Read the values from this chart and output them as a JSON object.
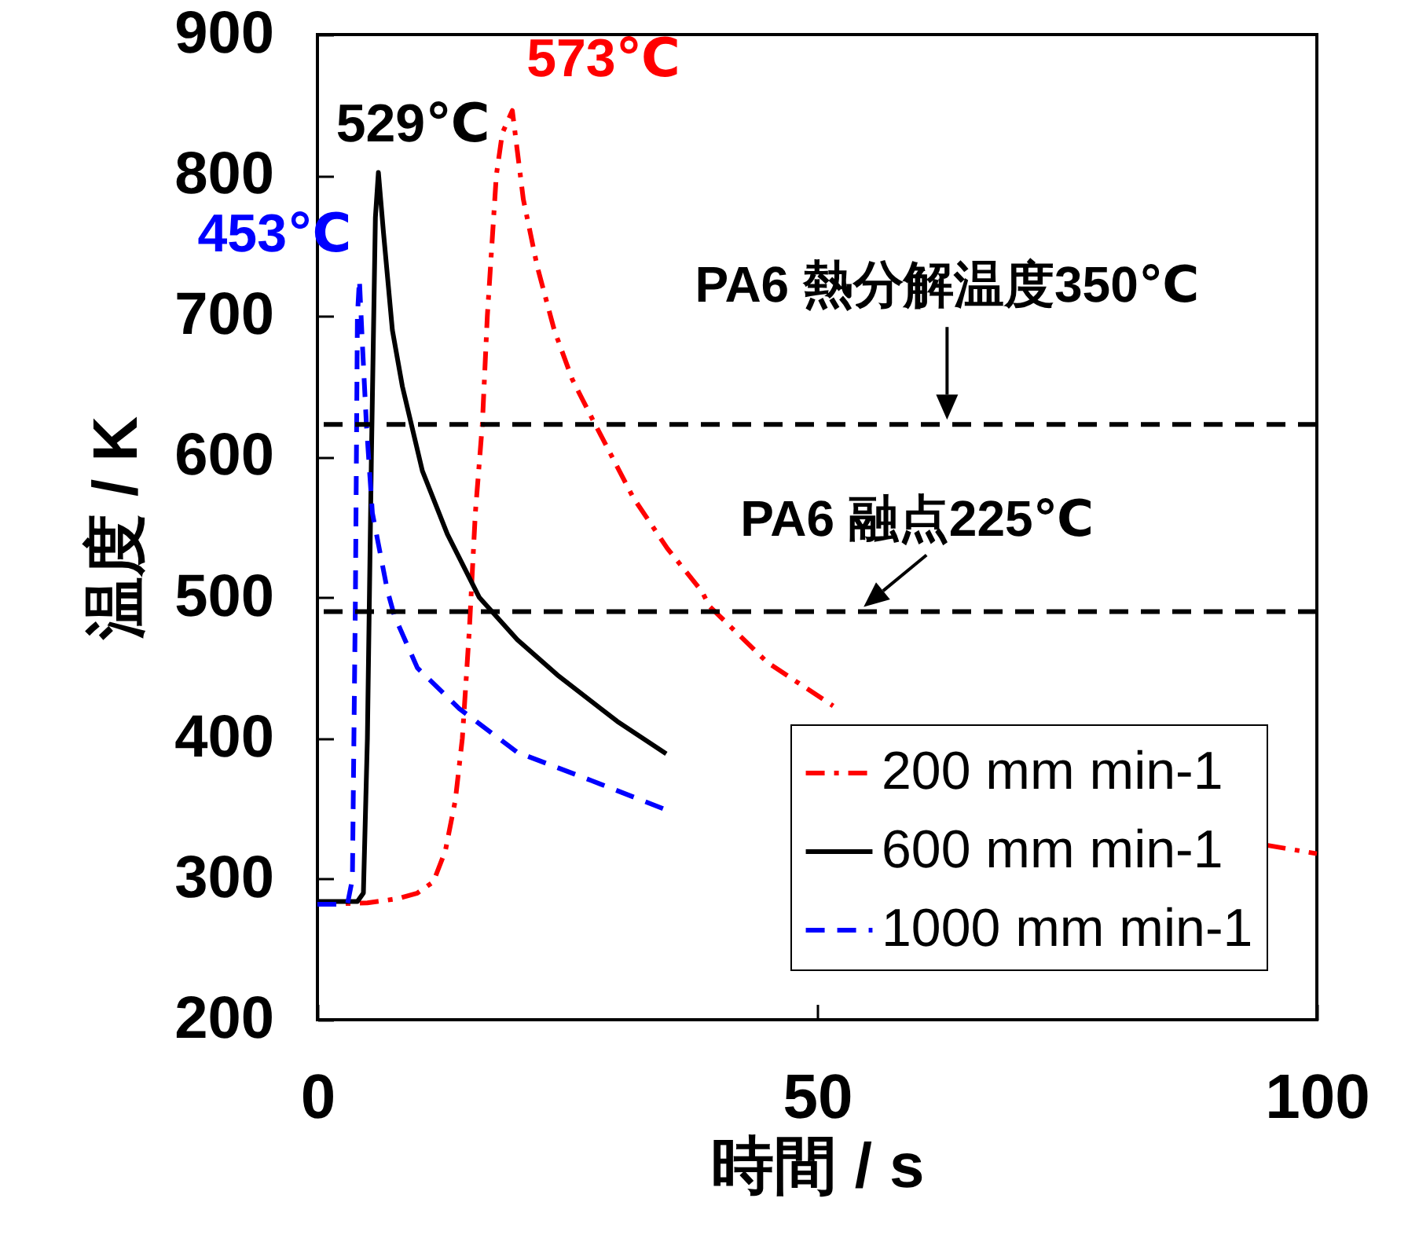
{
  "chart_data": {
    "type": "line",
    "xlabel": "時間 / s",
    "ylabel": "温度 / K",
    "xlim": [
      0,
      100
    ],
    "ylim": [
      200,
      900
    ],
    "xticks": [
      0,
      50,
      100
    ],
    "yticks": [
      200,
      300,
      400,
      500,
      600,
      700,
      800,
      900
    ],
    "grid": false,
    "legend": "bottom right",
    "marker": "none",
    "series": [
      {
        "name": "200 mm min-1",
        "color": "#ff0000",
        "line_style": "dotted",
        "x": [
          0,
          5,
          8,
          10,
          11.6,
          12.8,
          13.8,
          14.5,
          15.2,
          15.8,
          16.5,
          17,
          17.9,
          18.5,
          19.5,
          20.6,
          22,
          23.7,
          25.5,
          27.5,
          31.6,
          35,
          38.5,
          39.2,
          45,
          51.6,
          60,
          95,
          100
        ],
        "values": [
          282,
          283,
          286,
          290,
          298,
          320,
          356,
          400,
          477,
          560,
          623,
          700,
          800,
          830,
          846,
          783,
          735,
          690,
          655,
          627,
          571,
          535,
          504,
          494,
          454,
          423,
          null,
          324,
          318
        ]
      },
      {
        "name": "600 mm min-1",
        "color": "#000000",
        "line_style": "solid",
        "x": [
          0,
          4,
          4.6,
          5,
          5.4,
          5.8,
          6.1,
          6.6,
          7.5,
          8.5,
          9.4,
          10.5,
          13,
          16.2,
          20,
          24,
          30,
          34.9
        ],
        "values": [
          284,
          284,
          290,
          400,
          600,
          770,
          802,
          760,
          690,
          650,
          623,
          590,
          545,
          500,
          470,
          445,
          412,
          389
        ]
      },
      {
        "name": "1000 mm min-1",
        "color": "#0000ff",
        "line_style": "dashed",
        "x": [
          0,
          3,
          3.5,
          3.8,
          4,
          4.2,
          4.5,
          4.9,
          5.5,
          7,
          7.7,
          10,
          14.2,
          20,
          27.4,
          34.6
        ],
        "values": [
          282,
          282,
          300,
          500,
          700,
          726,
          680,
          623,
          560,
          505,
          487,
          450,
          421,
          390,
          370,
          350
        ]
      }
    ],
    "ref_lines": [
      {
        "axis": "y",
        "value": 623,
        "label": "PA6 熱分解温度350℃",
        "color": "#000000",
        "line_style": "dashed"
      },
      {
        "axis": "y",
        "value": 490,
        "label": "PA6 融点225℃",
        "color": "#000000",
        "line_style": "dashed"
      }
    ],
    "annotations": [
      {
        "text": "573℃",
        "x": 19.5,
        "y": 846
      },
      {
        "text": "529℃",
        "x": 6.1,
        "y": 802
      },
      {
        "text": "453℃",
        "x": 4.2,
        "y": 726
      }
    ]
  }
}
